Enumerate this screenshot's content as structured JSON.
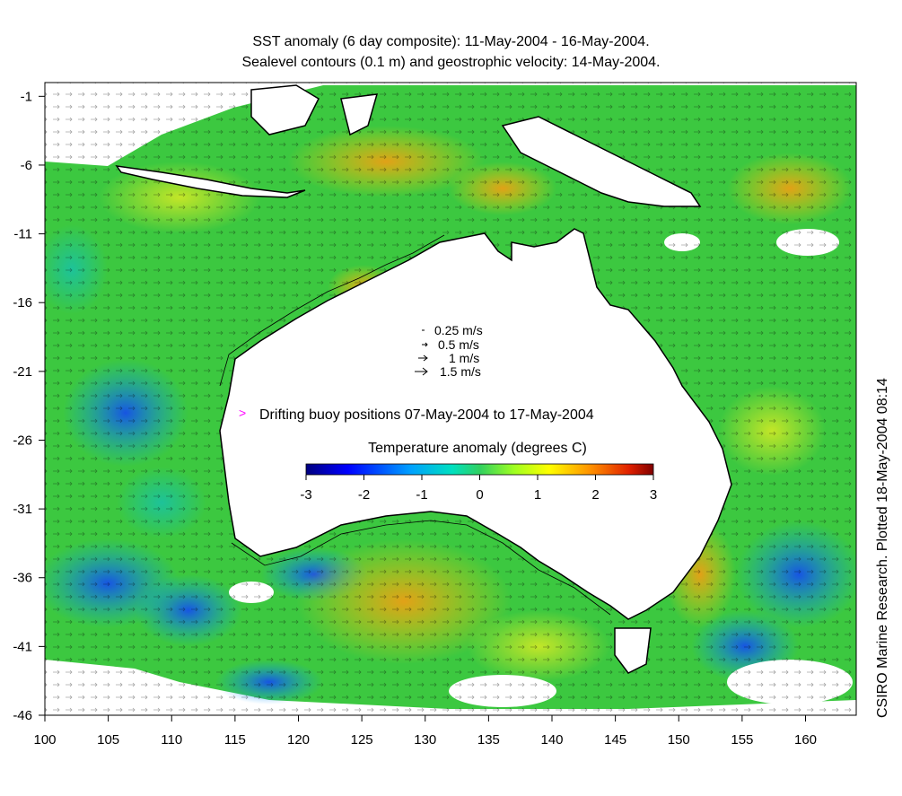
{
  "title": {
    "line1": "SST anomaly (6 day composite): 11-May-2004 - 16-May-2004.",
    "line2": "Sealevel contours (0.1 m) and geostrophic velocity: 14-May-2004."
  },
  "credit": "CSIRO Marine Research. Plotted 18-May-2004 08:14",
  "velocity_legend": [
    {
      "label": "0.25 m/s",
      "speed": 0.25
    },
    {
      "label": "0.5 m/s",
      "speed": 0.5
    },
    {
      "label": "1 m/s",
      "speed": 1
    },
    {
      "label": "1.5 m/s",
      "speed": 1.5
    }
  ],
  "buoy_legend": {
    "symbol": ">",
    "label": "Drifting buoy positions 07-May-2004 to 17-May-2004",
    "color": "#ff00ff"
  },
  "colorbar": {
    "title": "Temperature anomaly (degrees C)",
    "ticks": [
      "-3",
      "-2",
      "-1",
      "0",
      "1",
      "2",
      "3"
    ],
    "range": [
      -3,
      3
    ],
    "colors": [
      "#00007f",
      "#0000ff",
      "#007fff",
      "#00ffff",
      "#7fff7f",
      "#ffff00",
      "#ff7f00",
      "#ff0000",
      "#7f0000"
    ]
  },
  "axes": {
    "x_ticks": [
      "100",
      "105",
      "110",
      "115",
      "120",
      "125",
      "130",
      "135",
      "140",
      "145",
      "150",
      "155",
      "160"
    ],
    "y_ticks": [
      "-1",
      "-6",
      "-11",
      "-16",
      "-21",
      "-26",
      "-31",
      "-36",
      "-41",
      "-46"
    ],
    "xlim": [
      100,
      164
    ],
    "ylim": [
      -46,
      0
    ]
  },
  "colors": {
    "land": "#ffffff",
    "ocean_base": "#33cc33",
    "coast": "#000000"
  }
}
